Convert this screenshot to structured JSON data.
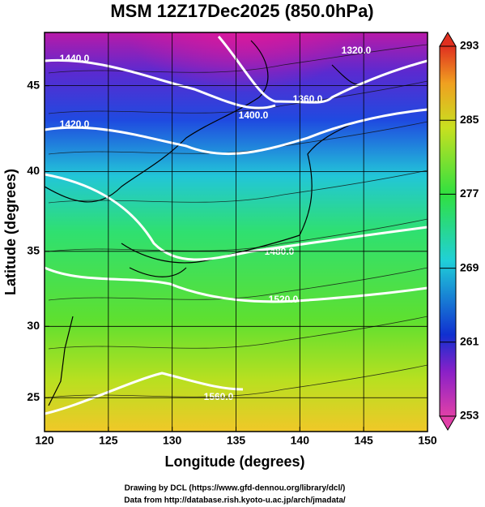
{
  "title": "MSM 12Z17Dec2025 (850.0hPa)",
  "x_axis": {
    "label": "Longitude (degrees)",
    "range": [
      120,
      150
    ],
    "ticks": [
      120,
      125,
      130,
      135,
      140,
      145,
      150
    ]
  },
  "y_axis": {
    "label": "Latitude  (degrees)",
    "ticks": [
      25,
      30,
      35,
      40,
      45
    ]
  },
  "colorbar": {
    "range": [
      253,
      293
    ],
    "ticks": [
      253,
      261,
      269,
      277,
      285,
      293
    ]
  },
  "contour_labels": [
    "1440.0",
    "1420.0",
    "1400.0",
    "1360.0",
    "1320.0",
    "1480.0",
    "1520.0",
    "1560.0"
  ],
  "credits": [
    "Drawing by DCL (https://www.gfd-dennou.org/library/dcl/)",
    "Data from http://database.rish.kyoto-u.ac.jp/arch/jmadata/"
  ]
}
